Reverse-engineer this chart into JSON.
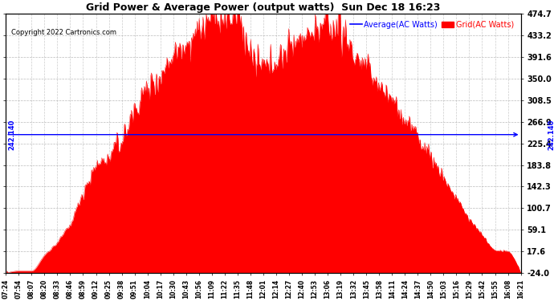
{
  "title": "Grid Power & Average Power (output watts)  Sun Dec 18 16:23",
  "copyright": "Copyright 2022 Cartronics.com",
  "ylabel_right_ticks": [
    474.7,
    433.2,
    391.6,
    350.0,
    308.5,
    266.9,
    225.4,
    183.8,
    142.3,
    100.7,
    59.1,
    17.6,
    -24.0
  ],
  "ylim": [
    -24.0,
    474.7
  ],
  "average_value": 242.14,
  "average_label": "242.140",
  "avg_line_color": "#0000ff",
  "grid_fill_color": "#ff0000",
  "background_color": "#ffffff",
  "grid_line_color": "#aaaaaa",
  "title_color": "#000000",
  "legend_avg_color": "#0000ff",
  "legend_grid_color": "#ff0000",
  "x_tick_labels": [
    "07:24",
    "07:54",
    "08:07",
    "08:20",
    "08:33",
    "08:46",
    "08:59",
    "09:12",
    "09:25",
    "09:38",
    "09:51",
    "10:04",
    "10:17",
    "10:30",
    "10:43",
    "10:56",
    "11:09",
    "11:22",
    "11:35",
    "11:48",
    "12:01",
    "12:14",
    "12:27",
    "12:40",
    "12:53",
    "13:06",
    "13:19",
    "13:32",
    "13:45",
    "13:58",
    "14:11",
    "14:24",
    "14:37",
    "14:50",
    "15:03",
    "15:16",
    "15:29",
    "15:42",
    "15:55",
    "16:08",
    "16:21"
  ],
  "figsize": [
    6.9,
    3.75
  ],
  "dpi": 100
}
